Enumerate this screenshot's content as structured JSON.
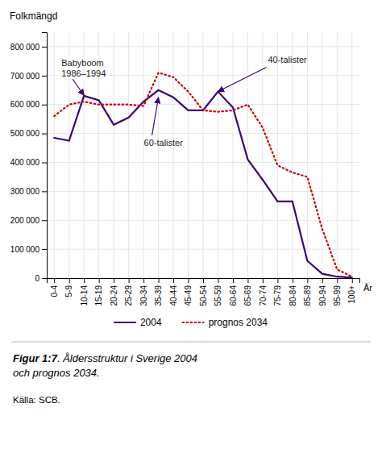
{
  "chart_data": {
    "type": "line",
    "x_label": "År",
    "y_label": "Folkmängd",
    "categories": [
      "0-4",
      "5-9",
      "10-14",
      "15-19",
      "20-24",
      "25-29",
      "30-34",
      "35-39",
      "40-44",
      "45-49",
      "50-54",
      "55-59",
      "60-64",
      "65-69",
      "70-74",
      "75-79",
      "80-84",
      "85-89",
      "90-94",
      "95-99",
      "100+"
    ],
    "series": [
      {
        "name": "2004",
        "color": "#3d007a",
        "line_style": "solid",
        "values": [
          485000,
          475000,
          630000,
          615000,
          530000,
          555000,
          610000,
          650000,
          625000,
          580000,
          580000,
          645000,
          590000,
          410000,
          340000,
          265000,
          265000,
          60000,
          15000,
          5000,
          2000
        ]
      },
      {
        "name": "prognos 2034",
        "color": "#cc0000",
        "line_style": "dotted",
        "values": [
          560000,
          600000,
          610000,
          600000,
          600000,
          600000,
          595000,
          710000,
          695000,
          645000,
          580000,
          575000,
          580000,
          600000,
          520000,
          390000,
          365000,
          350000,
          170000,
          30000,
          5000
        ]
      }
    ],
    "ylim": [
      0,
      850000
    ],
    "yticks": [
      0,
      {
        "value": 100000,
        "label": "100 000"
      },
      {
        "value": 200000,
        "label": "200 000"
      },
      {
        "value": 300000,
        "label": "300 000"
      },
      {
        "value": 400000,
        "label": "400 000"
      },
      {
        "value": 500000,
        "label": "500 000"
      },
      {
        "value": 600000,
        "label": "600 000"
      },
      {
        "value": 700000,
        "label": "700 000"
      },
      {
        "value": 800000,
        "label": "800 000"
      }
    ],
    "grid": true,
    "legend": "bottom",
    "annotations": [
      {
        "text": "Babyboom\n1986–1994",
        "x": "10-14",
        "y": 632000
      },
      {
        "text": "60-talister",
        "x": "35-39",
        "y": 625000
      },
      {
        "text": "40-talister",
        "x": "55-59",
        "y": 645000
      }
    ],
    "caption": [
      "Figur 1:7",
      ". Åldersstruktur i Sverige 2004\noch prognos 2034."
    ],
    "source": "Källa: SCB."
  }
}
